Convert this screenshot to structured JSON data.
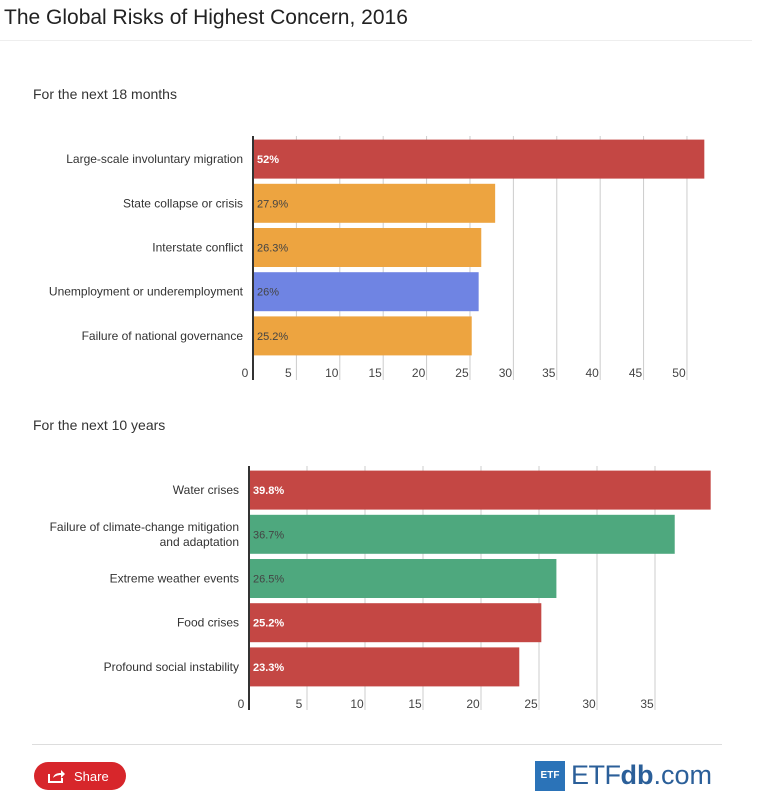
{
  "page": {
    "title": "The Global Risks of Highest Concern, 2016"
  },
  "footer": {
    "share_label": "Share",
    "brand_box": "ETF",
    "brand_main": "ETF",
    "brand_bold": "db",
    "brand_suffix": ".com"
  },
  "chart_data": [
    {
      "type": "bar",
      "orientation": "horizontal",
      "title": "For the next 18 months",
      "categories": [
        "Large-scale involuntary migration",
        "State collapse or crisis",
        "Interstate conflict",
        "Unemployment or underemployment",
        "Failure of national governance"
      ],
      "values": [
        52,
        27.9,
        26.3,
        26,
        25.2
      ],
      "value_labels": [
        "52%",
        "27.9%",
        "26.3%",
        "26%",
        "25.2%"
      ],
      "colors": [
        "#c44744",
        "#eda440",
        "#eda440",
        "#6f84e3",
        "#eda440"
      ],
      "label_colors": [
        "#ffffff",
        "#444444",
        "#444444",
        "#444444",
        "#444444"
      ],
      "xlim": [
        0,
        53
      ],
      "ticks": [
        0,
        5,
        10,
        15,
        20,
        25,
        30,
        35,
        40,
        45,
        50
      ],
      "grid": true
    },
    {
      "type": "bar",
      "orientation": "horizontal",
      "title": "For the next 10 years",
      "categories": [
        "Water crises",
        "Failure of climate-change mitigation and adaptation",
        "Extreme weather events",
        "Food crises",
        "Profound social instability"
      ],
      "values": [
        39.8,
        36.7,
        26.5,
        25.2,
        23.3
      ],
      "value_labels": [
        "39.8%",
        "36.7%",
        "26.5%",
        "25.2%",
        "23.3%"
      ],
      "colors": [
        "#c44744",
        "#4ea87e",
        "#4ea87e",
        "#c44744",
        "#c44744"
      ],
      "label_colors": [
        "#ffffff",
        "#444444",
        "#444444",
        "#ffffff",
        "#ffffff"
      ],
      "xlim": [
        0,
        40
      ],
      "ticks": [
        0,
        5,
        10,
        15,
        20,
        25,
        30,
        35
      ],
      "grid": true
    }
  ]
}
